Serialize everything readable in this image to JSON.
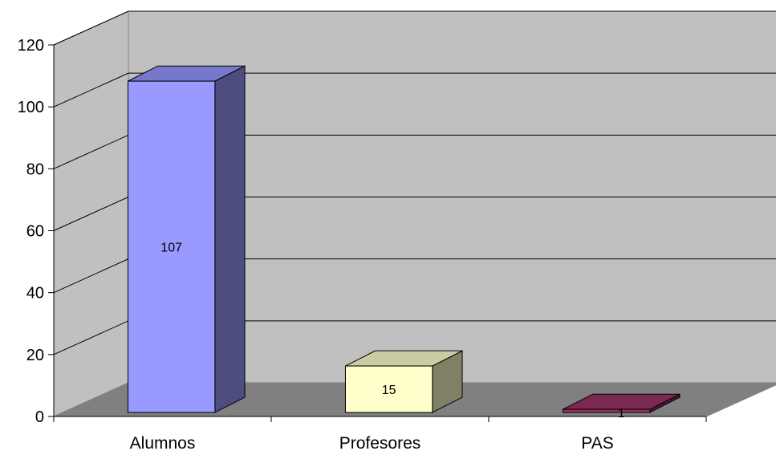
{
  "chart_data": {
    "type": "bar",
    "style": "3d-column",
    "categories": [
      "Alumnos",
      "Profesores",
      "PAS"
    ],
    "values": [
      107,
      15,
      1
    ],
    "data_labels": [
      "107",
      "15",
      "1"
    ],
    "ylim": [
      0,
      120
    ],
    "yticks": [
      0,
      20,
      40,
      60,
      80,
      100,
      120
    ],
    "ytick_labels": [
      "0",
      "20",
      "40",
      "60",
      "80",
      "100",
      "120"
    ],
    "grid": true,
    "legend": "none",
    "colors": {
      "wall": "#c0c0c0",
      "floor": "#808080",
      "gridline": "#000000",
      "bar_front": [
        "#9999ff",
        "#ffffcc",
        "#993366"
      ],
      "bar_side": [
        "#4d4d80",
        "#808066",
        "#4d1a33"
      ],
      "bar_top": [
        "#7777cc",
        "#cccca3",
        "#7a2952"
      ]
    }
  }
}
